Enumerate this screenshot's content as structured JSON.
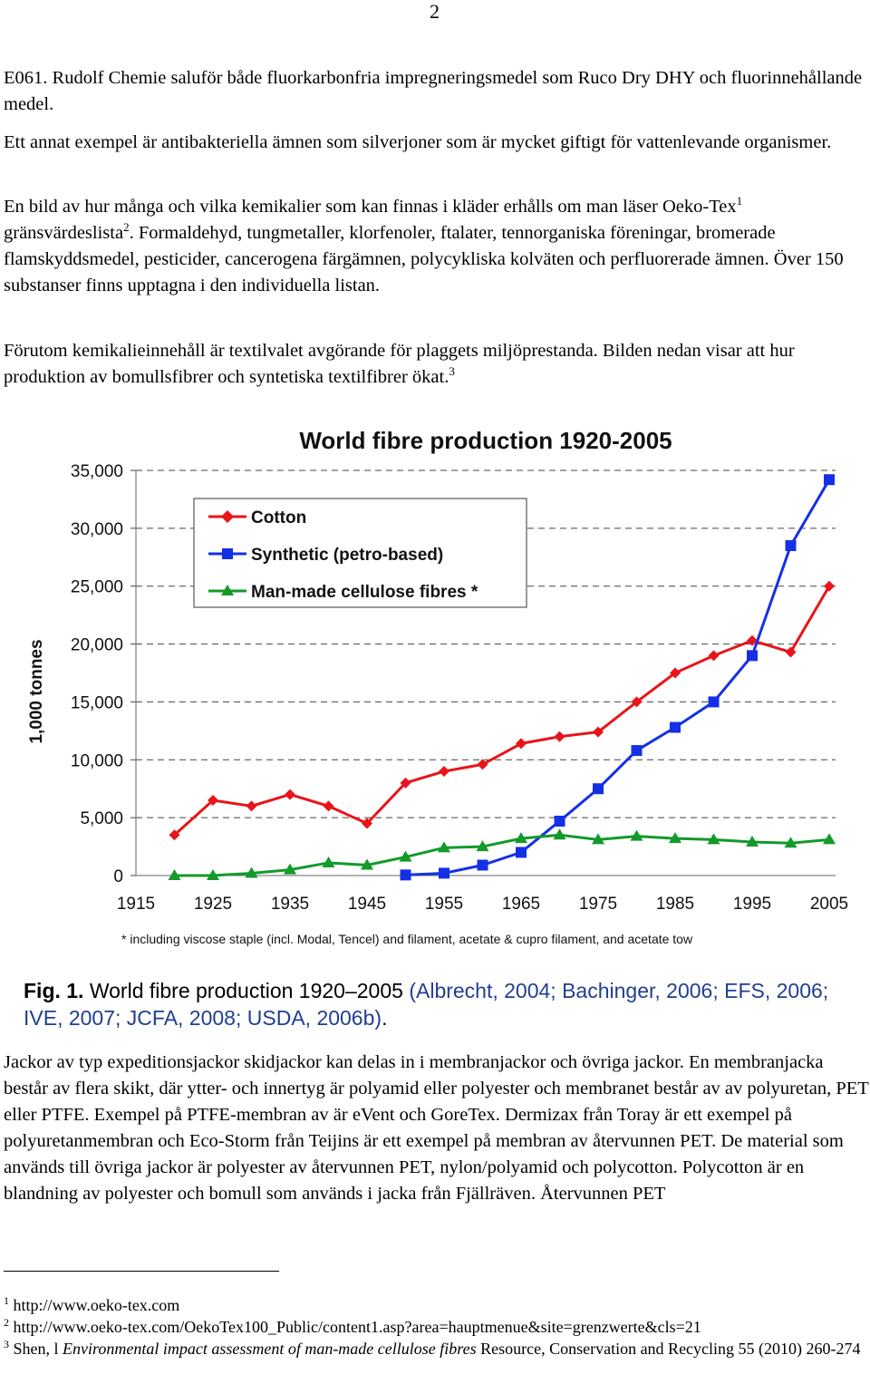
{
  "page_number": "2",
  "paragraphs": {
    "p1": "E061. Rudolf Chemie saluför både fluorkarbonfria impregneringsmedel som Ruco Dry DHY och fluorinnehållande medel.",
    "p2": "Ett annat exempel är antibakteriella ämnen som silverjoner som är mycket giftigt för vattenlevande organismer.",
    "p3a": "En bild av hur många och vilka kemikalier som kan finnas i kläder erhålls om man läser Oeko-Tex",
    "p3_sup1": "1",
    "p3b": " gränsvärdeslista",
    "p3_sup2": "2",
    "p3c": ". Formaldehyd, tungmetaller, klorfenoler, ftalater, tennorganiska föreningar, bromerade flamskyddsmedel, pesticider, cancerogena färgämnen, polycykliska kolväten och perfluorerade ämnen. Över 150 substanser finns upptagna i den individuella listan.",
    "p4a": "Förutom kemikalieinnehåll är textilvalet avgörande för plaggets miljöprestanda. Bilden nedan visar att hur produktion av bomullsfibrer och syntetiska textilfibrer ökat.",
    "p4_sup": "3",
    "p5": "Jackor av typ expeditionsjackor skidjackor kan delas in i membranjackor och övriga jackor. En membranjacka består av flera skikt, där ytter- och innertyg är polyamid eller polyester och membranet består av av polyuretan, PET eller PTFE. Exempel på PTFE-membran av är eVent och GoreTex. Dermizax från Toray är ett exempel på polyuretanmembran och Eco-Storm från Teijins är ett exempel på membran av återvunnen PET. De material som används till övriga jackor är polyester av återvunnen PET, nylon/polyamid och polycotton. Polycotton är en blandning av polyester och bomull som används i jacka från Fjällräven. Återvunnen PET"
  },
  "chart_data": {
    "type": "line",
    "title": "World fibre production 1920-2005",
    "ylabel": "1,000 tonnes",
    "xlabel": "",
    "x_ticks": [
      "1915",
      "1925",
      "1935",
      "1945",
      "1955",
      "1965",
      "1975",
      "1985",
      "1995",
      "2005"
    ],
    "y_ticks": [
      "35,000",
      "30,000",
      "25,000",
      "20,000",
      "15,000",
      "10,000",
      "5,000",
      "0"
    ],
    "xlim": [
      1915,
      2005
    ],
    "ylim": [
      0,
      35000
    ],
    "grid": "horizontal dashed",
    "legend_placement": "top-left",
    "footnote": "* including viscose staple (incl. Modal, Tencel) and filament, acetate & cupro filament, and acetate tow",
    "series": [
      {
        "name": "Cotton",
        "color": "#e8141a",
        "marker": "diamond",
        "x": [
          1920,
          1925,
          1930,
          1935,
          1940,
          1945,
          1950,
          1955,
          1960,
          1965,
          1970,
          1975,
          1980,
          1985,
          1990,
          1995,
          2000,
          2005
        ],
        "values": [
          3500,
          6500,
          6000,
          7000,
          6000,
          4500,
          8000,
          9000,
          9600,
          11400,
          12000,
          12400,
          15000,
          17500,
          19000,
          20300,
          19300,
          25000
        ]
      },
      {
        "name": "Synthetic (petro-based)",
        "color": "#1430e6",
        "marker": "square",
        "x": [
          1950,
          1955,
          1960,
          1965,
          1970,
          1975,
          1980,
          1985,
          1990,
          1995,
          2000,
          2005
        ],
        "values": [
          50,
          200,
          900,
          2000,
          4700,
          7500,
          10800,
          12800,
          15000,
          19000,
          28500,
          34200
        ]
      },
      {
        "name": "Man-made cellulose fibres *",
        "color": "#129a2a",
        "marker": "triangle",
        "x": [
          1920,
          1925,
          1930,
          1935,
          1940,
          1945,
          1950,
          1955,
          1960,
          1965,
          1970,
          1975,
          1980,
          1985,
          1990,
          1995,
          2000,
          2005
        ],
        "values": [
          0,
          0,
          200,
          500,
          1100,
          900,
          1600,
          2400,
          2500,
          3200,
          3500,
          3100,
          3400,
          3200,
          3100,
          2900,
          2800,
          3100
        ]
      }
    ]
  },
  "caption": {
    "fig_label": "Fig. 1.",
    "text": " World fibre production 1920–2005 ",
    "refs": "(Albrecht, 2004; Bachinger, 2006; EFS, 2006; IVE, 2007; JCFA, 2008; USDA, 2006b)",
    "end": "."
  },
  "footnotes": [
    {
      "num": "1",
      "text": "http://www.oeko-tex.com"
    },
    {
      "num": "2",
      "text": "http://www.oeko-tex.com/OekoTex100_Public/content1.asp?area=hauptmenue&site=grenzwerte&cls=21"
    },
    {
      "num": "3",
      "text_a": "Shen, l ",
      "text_italic": "Environmental impact assessment of man-made cellulose fibres",
      "text_b": " Resource, Conservation and Recycling 55 (2010) 260-274"
    }
  ]
}
